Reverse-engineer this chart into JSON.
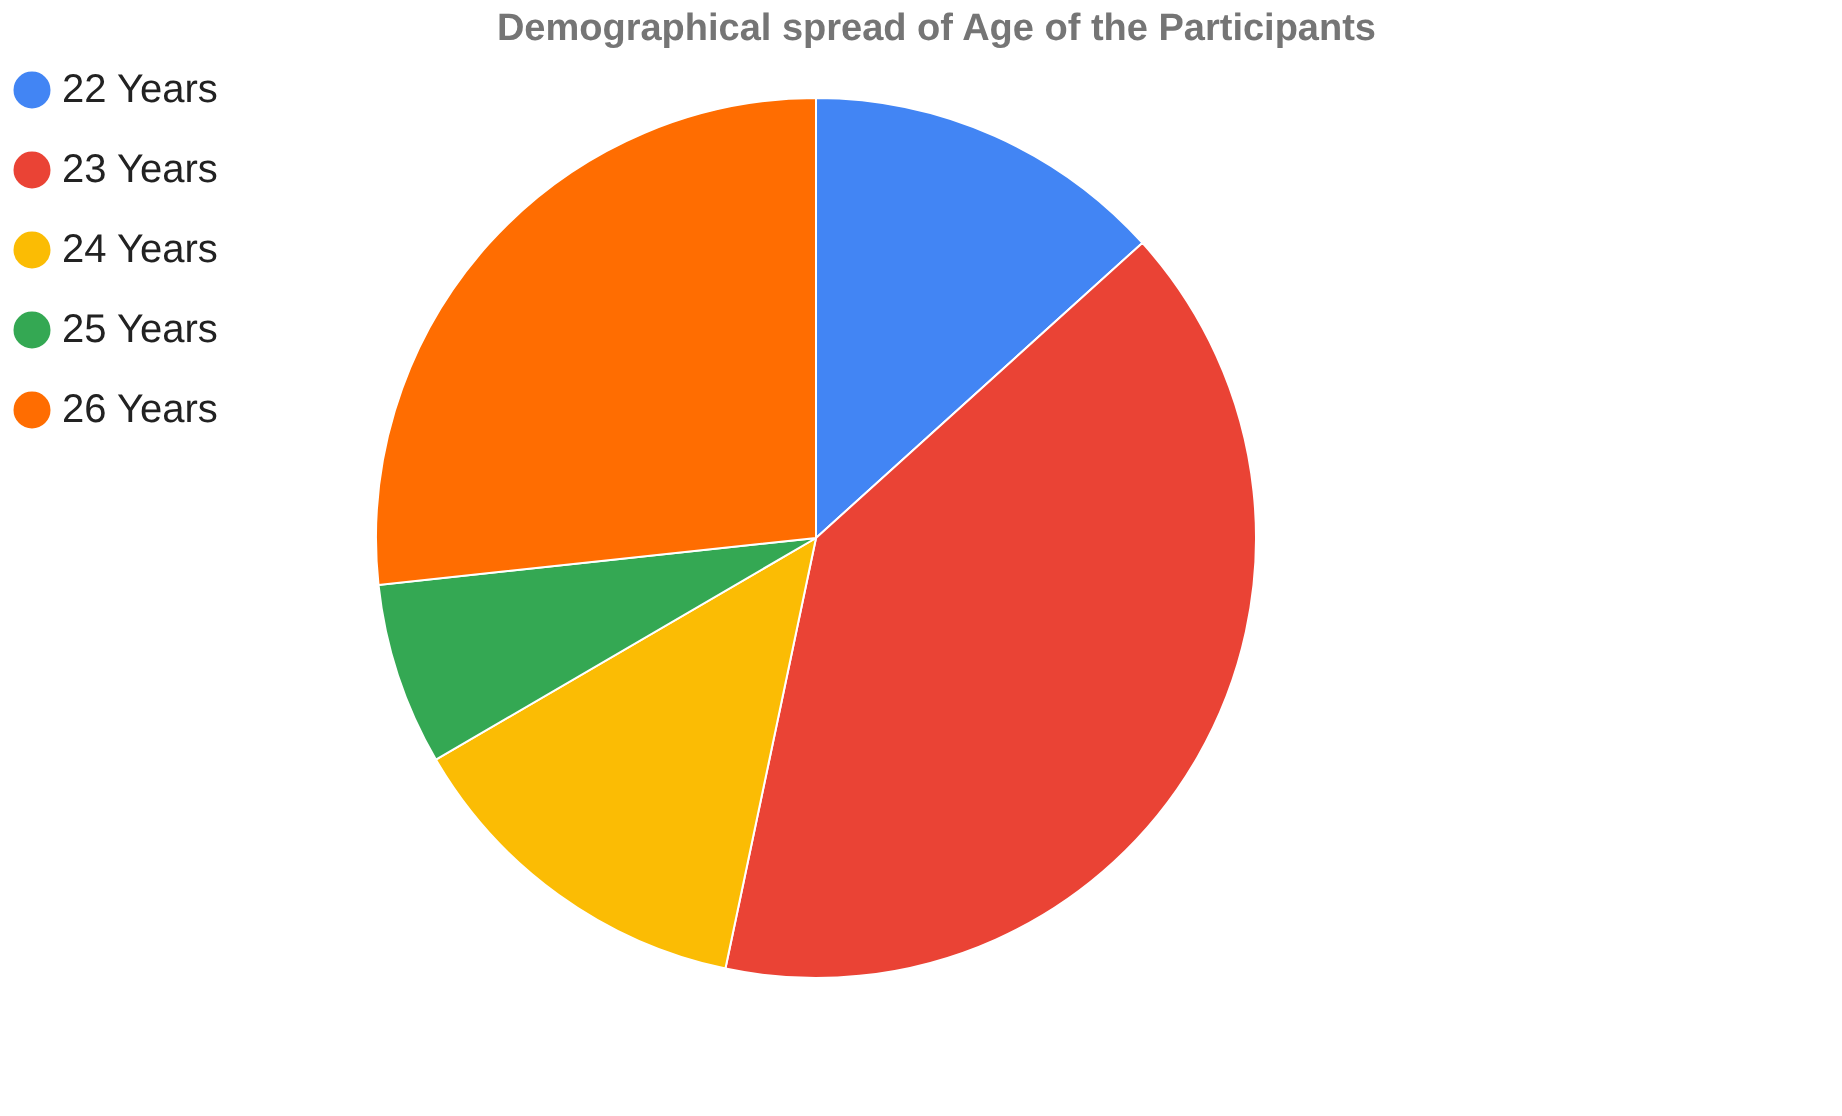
{
  "chart_data": {
    "type": "pie",
    "title": "Demographical spread of Age of the Participants",
    "categories": [
      "22 Years",
      "23 Years",
      "24 Years",
      "25 Years",
      "26 Years"
    ],
    "values": [
      13.3,
      40,
      13.3,
      6.7,
      26.7
    ],
    "colors": [
      "#4285f4",
      "#ea4335",
      "#fbbc04",
      "#34a853",
      "#ff6d01"
    ],
    "legend": "top left"
  }
}
